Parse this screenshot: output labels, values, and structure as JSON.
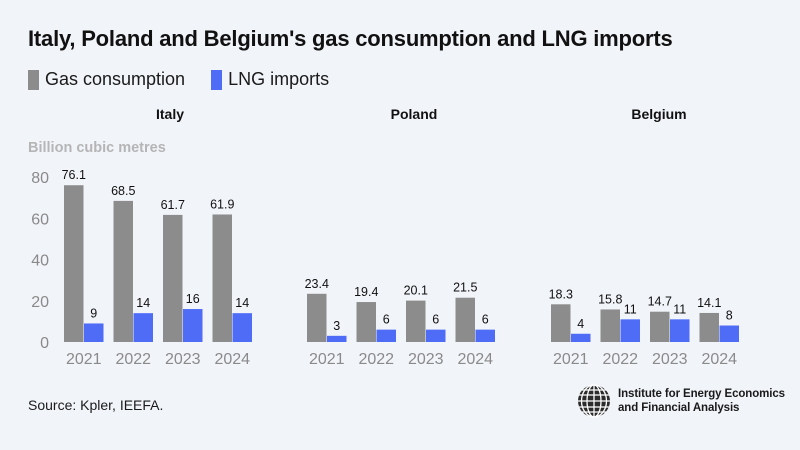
{
  "title": "Italy, Poland and Belgium's gas consumption and LNG imports",
  "source": "Source: Kpler, IEEFA.",
  "logo": {
    "icon": "globe-icon",
    "line1": "Institute for Energy Economics",
    "line2": "and Financial Analysis"
  },
  "colors": {
    "gas": "#8c8c8c",
    "lng": "#4f6cf7",
    "axis_text": "#8a8a8a",
    "unit_text": "#b5b5b5"
  },
  "legend": [
    {
      "label": "Gas consumption",
      "color": "#8c8c8c"
    },
    {
      "label": "LNG imports",
      "color": "#4f6cf7"
    }
  ],
  "chart_data": {
    "type": "bar",
    "ylabel": "Billion cubic metres",
    "ylim": [
      0,
      85
    ],
    "yticks": [
      "0",
      "20",
      "40",
      "60",
      "80"
    ],
    "categories": [
      "2021",
      "2022",
      "2023",
      "2024"
    ],
    "panels": [
      {
        "name": "Italy",
        "series": [
          {
            "name": "Gas consumption",
            "values": [
              76.1,
              68.5,
              61.7,
              61.9
            ],
            "labels": [
              "76.1",
              "68.5",
              "61.7",
              "61.9"
            ]
          },
          {
            "name": "LNG imports",
            "values": [
              9,
              14,
              16,
              14
            ],
            "labels": [
              "9",
              "14",
              "16",
              "14"
            ]
          }
        ]
      },
      {
        "name": "Poland",
        "series": [
          {
            "name": "Gas consumption",
            "values": [
              23.4,
              19.4,
              20.1,
              21.5
            ],
            "labels": [
              "23.4",
              "19.4",
              "20.1",
              "21.5"
            ]
          },
          {
            "name": "LNG imports",
            "values": [
              3,
              6,
              6,
              6
            ],
            "labels": [
              "3",
              "6",
              "6",
              "6"
            ]
          }
        ]
      },
      {
        "name": "Belgium",
        "series": [
          {
            "name": "Gas consumption",
            "values": [
              18.3,
              15.8,
              14.7,
              14.1
            ],
            "labels": [
              "18.3",
              "15.8",
              "14.7",
              "14.1"
            ]
          },
          {
            "name": "LNG imports",
            "values": [
              4,
              11,
              11,
              8
            ],
            "labels": [
              "4",
              "11",
              "11",
              "8"
            ]
          }
        ]
      }
    ]
  }
}
